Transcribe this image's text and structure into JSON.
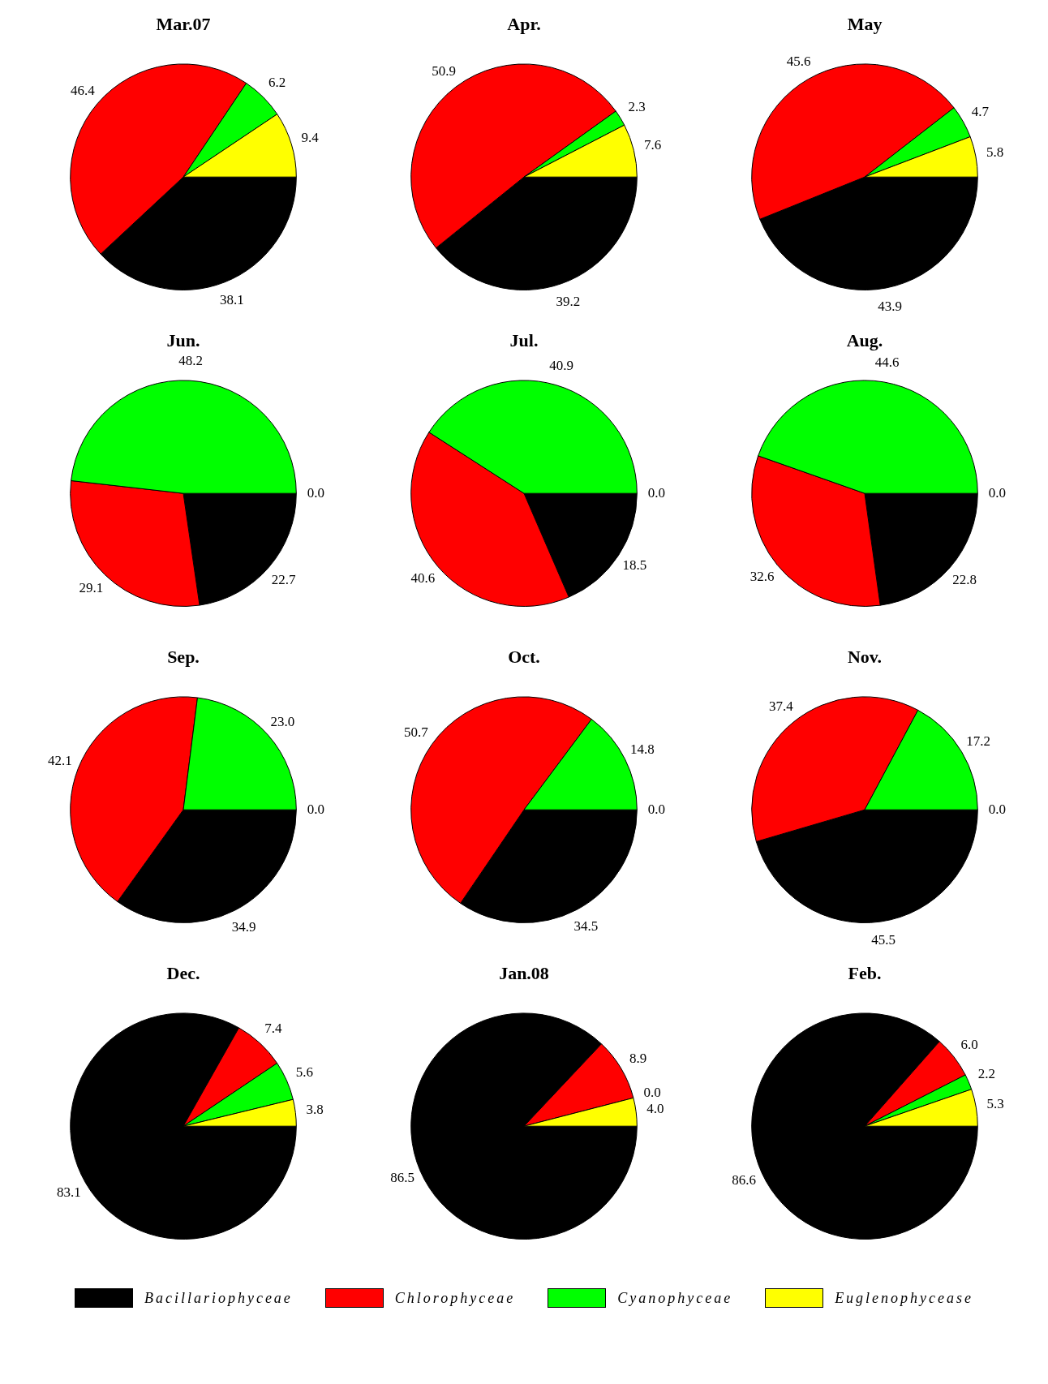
{
  "chart_data": [
    {
      "type": "pie",
      "title": "Mar.07",
      "categories": [
        "Bacillariophyceae",
        "Chlorophyceae",
        "Cyanophyceae",
        "Euglenophycease"
      ],
      "colors": [
        "#000000",
        "#ff0000",
        "#00ff00",
        "#ffff00"
      ],
      "values": [
        38.1,
        46.4,
        6.2,
        9.4
      ],
      "value_labels": [
        "38.1",
        "46.4",
        "6.2",
        "9.4"
      ],
      "legend": "bottom"
    },
    {
      "type": "pie",
      "title": "Apr.",
      "categories": [
        null,
        null,
        null,
        null
      ],
      "colors": [
        "#000000",
        "#ff0000",
        "#00ff00",
        "#ffff00"
      ],
      "values": [
        39.2,
        50.9,
        2.3,
        7.6
      ],
      "value_labels": [
        "39.2",
        "50.9",
        "2.3",
        "7.6"
      ]
    },
    {
      "type": "pie",
      "title": "May",
      "categories": [
        null,
        null,
        null,
        null
      ],
      "colors": [
        "#000000",
        "#ff0000",
        "#00ff00",
        "#ffff00"
      ],
      "values": [
        43.9,
        45.6,
        4.7,
        5.8
      ],
      "value_labels": [
        "43.9",
        "45.6",
        "4.7",
        "5.8"
      ]
    },
    {
      "type": "pie",
      "title": "Jun.",
      "categories": [
        null,
        null,
        null,
        null
      ],
      "colors": [
        "#000000",
        "#ff0000",
        "#00ff00",
        "#ffff00"
      ],
      "values": [
        22.7,
        29.1,
        48.2,
        0
      ],
      "value_labels": [
        "22.7",
        "29.1",
        "48.2",
        "0.0"
      ]
    },
    {
      "type": "pie",
      "title": "Jul.",
      "categories": [
        null,
        null,
        null,
        null
      ],
      "colors": [
        "#000000",
        "#ff0000",
        "#00ff00",
        "#ffff00"
      ],
      "values": [
        18.5,
        40.6,
        40.9,
        0
      ],
      "value_labels": [
        "18.5",
        "40.6",
        "40.9",
        "0.0"
      ]
    },
    {
      "type": "pie",
      "title": "Aug.",
      "categories": [
        null,
        null,
        null,
        null
      ],
      "colors": [
        "#000000",
        "#ff0000",
        "#00ff00",
        "#ffff00"
      ],
      "values": [
        22.8,
        32.6,
        44.6,
        0
      ],
      "value_labels": [
        "22.8",
        "32.6",
        "44.6",
        "0.0"
      ]
    },
    {
      "type": "pie",
      "title": "Sep.",
      "categories": [
        null,
        null,
        null,
        null
      ],
      "colors": [
        "#000000",
        "#ff0000",
        "#00ff00",
        "#ffff00"
      ],
      "values": [
        34.9,
        42.1,
        23.0,
        0
      ],
      "value_labels": [
        "34.9",
        "42.1",
        "23.0",
        "0.0"
      ]
    },
    {
      "type": "pie",
      "title": "Oct.",
      "categories": [
        null,
        null,
        null,
        null
      ],
      "colors": [
        "#000000",
        "#ff0000",
        "#00ff00",
        "#ffff00"
      ],
      "values": [
        34.5,
        50.7,
        14.8,
        0
      ],
      "value_labels": [
        "34.5",
        "50.7",
        "14.8",
        "0.0"
      ]
    },
    {
      "type": "pie",
      "title": "Nov.",
      "categories": [
        null,
        null,
        null,
        null
      ],
      "colors": [
        "#000000",
        "#ff0000",
        "#00ff00",
        "#ffff00"
      ],
      "values": [
        45.5,
        37.4,
        17.2,
        0
      ],
      "value_labels": [
        "45.5",
        "37.4",
        "17.2",
        "0.0"
      ]
    },
    {
      "type": "pie",
      "title": "Dec.",
      "categories": [
        null,
        null,
        null,
        null
      ],
      "colors": [
        "#000000",
        "#ff0000",
        "#00ff00",
        "#ffff00"
      ],
      "values": [
        83.1,
        7.4,
        5.6,
        3.8
      ],
      "value_labels": [
        "83.1",
        "7.4",
        "5.6",
        "3.8"
      ]
    },
    {
      "type": "pie",
      "title": "Jan.08",
      "categories": [
        null,
        null,
        null,
        null
      ],
      "colors": [
        "#000000",
        "#ff0000",
        "#00ff00",
        "#ffff00"
      ],
      "values": [
        86.5,
        8.9,
        0,
        4.0
      ],
      "value_labels": [
        "86.5",
        "8.9",
        "0.0",
        "4.0"
      ]
    },
    {
      "type": "pie",
      "title": "Feb.",
      "categories": [
        null,
        null,
        null,
        null
      ],
      "colors": [
        "#000000",
        "#ff0000",
        "#00ff00",
        "#ffff00"
      ],
      "values": [
        86.6,
        6.0,
        2.2,
        5.3
      ],
      "value_labels": [
        "86.6",
        "6.0",
        "2.2",
        "5.3"
      ]
    }
  ]
}
